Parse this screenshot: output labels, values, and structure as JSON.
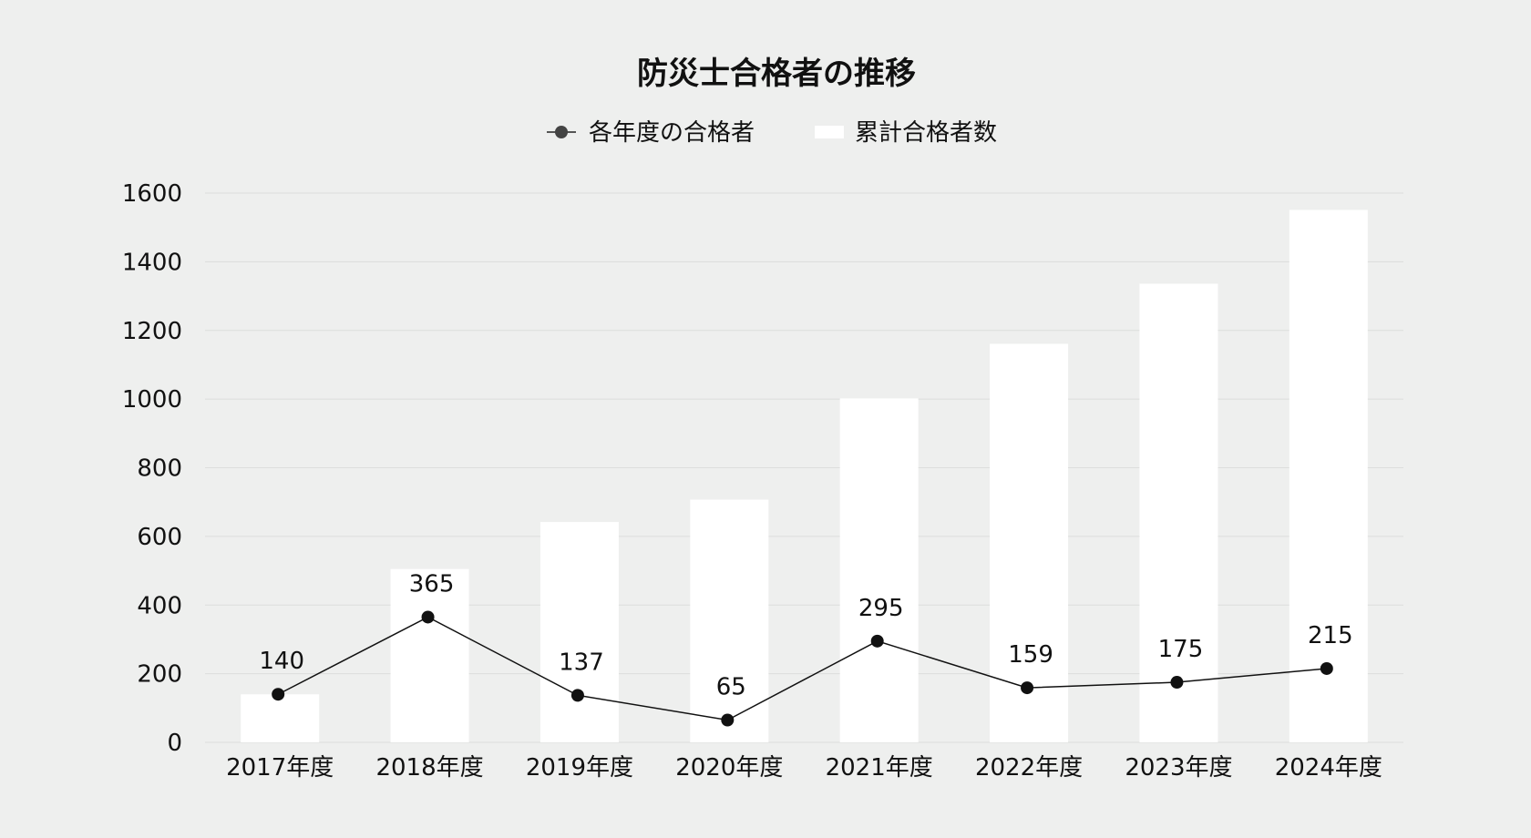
{
  "chart_data": {
    "type": "bar",
    "title": "防災士合格者の推移",
    "categories": [
      "2017年度",
      "2018年度",
      "2019年度",
      "2020年度",
      "2021年度",
      "2022年度",
      "2023年度",
      "2024年度"
    ],
    "series": [
      {
        "name": "累計合格者数",
        "type": "bar",
        "values": [
          140,
          505,
          642,
          707,
          1002,
          1161,
          1336,
          1551
        ],
        "color": "#ffffff"
      },
      {
        "name": "各年度の合格者",
        "type": "line",
        "values": [
          140,
          365,
          137,
          65,
          295,
          159,
          175,
          215
        ],
        "data_labels": [
          "140",
          "365",
          "137",
          "65",
          "295",
          "159",
          "175",
          "215"
        ],
        "color": "#111111"
      }
    ],
    "y_ticks": [
      "0",
      "200",
      "400",
      "600",
      "800",
      "1000",
      "1200",
      "1400",
      "1600"
    ],
    "ylim": [
      0,
      1600
    ],
    "grid": true,
    "legend": "top-center"
  }
}
